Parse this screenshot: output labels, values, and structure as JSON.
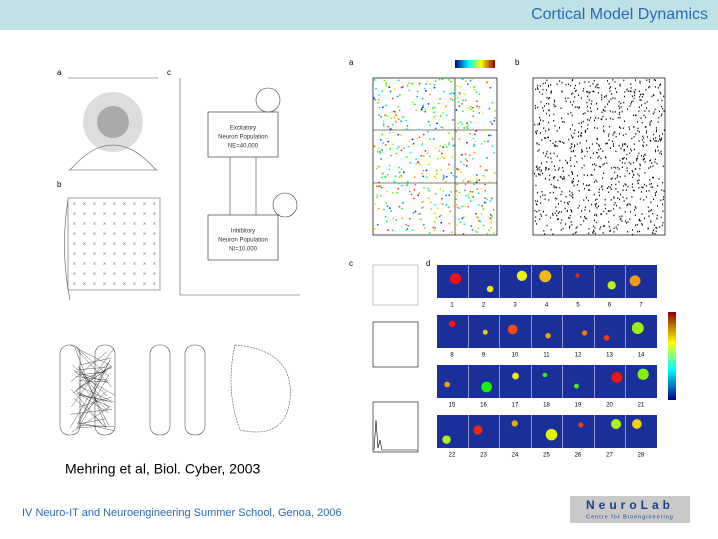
{
  "header": {
    "title": "Cortical Model Dynamics"
  },
  "figure_left": {
    "panels": [
      "a",
      "c",
      "b"
    ],
    "excitatory": [
      "Excitatory",
      "Neuron Population",
      "NE=40,000"
    ],
    "inhibitory": [
      "Inhibitory",
      "Neuron Population",
      "NI=10,000"
    ]
  },
  "figure_right": {
    "panels": [
      "a",
      "b",
      "c",
      "d"
    ],
    "frame_numbers": [
      "1",
      "2",
      "3",
      "4",
      "5",
      "6",
      "7",
      "8",
      "9",
      "10",
      "11",
      "12",
      "13",
      "14",
      "15",
      "16",
      "17",
      "18",
      "19",
      "20",
      "21",
      "22",
      "23",
      "24",
      "25",
      "26",
      "27",
      "28"
    ]
  },
  "caption": "Mehring et al, Biol. Cyber, 2003",
  "footer": "IV Neuro-IT and Neuroengineering Summer School, Genoa, 2006",
  "logo": {
    "name": "NeuroLab",
    "subtitle": "Centre for Bioengineering"
  }
}
